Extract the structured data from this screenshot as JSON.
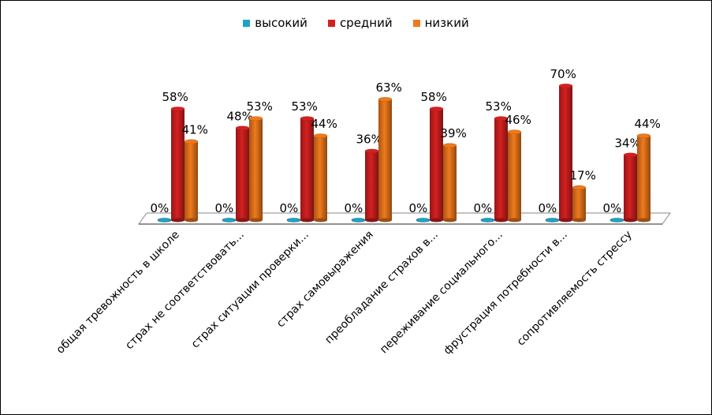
{
  "chart_data": {
    "type": "bar",
    "categories": [
      "общая тревожность в школе",
      "страх не соответствовать...",
      "страх ситуации проверки...",
      "страх самовыражения",
      "преобладание страхов в...",
      "переживание социального...",
      "фрустрация потребности в...",
      "сопротивляемость стрессу"
    ],
    "series": [
      {
        "name": "высокий",
        "color": "#1fa3c4",
        "values": [
          0,
          0,
          0,
          0,
          0,
          0,
          0,
          0
        ]
      },
      {
        "name": "средний",
        "color": "#d62020",
        "values": [
          58,
          48,
          53,
          36,
          58,
          53,
          70,
          34
        ]
      },
      {
        "name": "низкий",
        "color": "#f07a1c",
        "values": [
          41,
          53,
          44,
          63,
          39,
          46,
          17,
          44
        ]
      }
    ],
    "value_suffix": "%",
    "ylim": [
      0,
      80
    ],
    "grid": false,
    "legend": "top"
  }
}
